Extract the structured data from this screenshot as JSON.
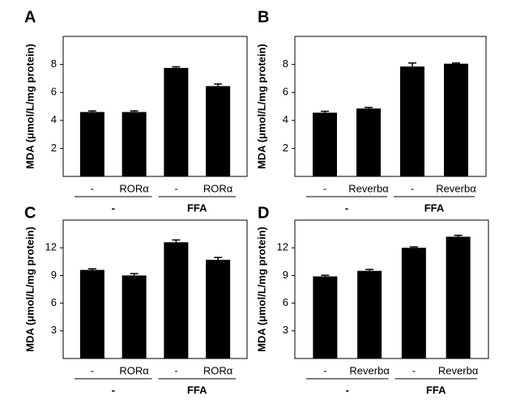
{
  "chart_data": [
    {
      "type": "bar",
      "panel": "A",
      "ylabel": "MDA  (μmol/L/mg protein)",
      "categories": [
        "-",
        "RORα",
        "-",
        "RORα"
      ],
      "group_labels": [
        "-",
        "FFA"
      ],
      "values": [
        4.6,
        4.6,
        7.75,
        6.45
      ],
      "errors": [
        0.08,
        0.08,
        0.08,
        0.15
      ],
      "color": "#000000",
      "ylim": [
        0,
        10
      ],
      "yticks": [
        2,
        4,
        6,
        8
      ]
    },
    {
      "type": "bar",
      "panel": "B",
      "ylabel": "MDA  (μmol/L/mg protein)",
      "categories": [
        "-",
        "Reverbα",
        "-",
        "Reverbα"
      ],
      "group_labels": [
        "-",
        "FFA"
      ],
      "values": [
        4.55,
        4.85,
        7.85,
        8.05
      ],
      "errors": [
        0.1,
        0.08,
        0.25,
        0.05
      ],
      "color": "#000000",
      "ylim": [
        0,
        10
      ],
      "yticks": [
        2,
        4,
        6,
        8
      ]
    },
    {
      "type": "bar",
      "panel": "C",
      "ylabel": "MDA (μmol/L/mg protein)",
      "categories": [
        "-",
        "RORα",
        "-",
        "RORα"
      ],
      "group_labels": [
        "-",
        "FFA"
      ],
      "values": [
        9.6,
        9.0,
        12.6,
        10.7
      ],
      "errors": [
        0.12,
        0.2,
        0.25,
        0.25
      ],
      "color": "#000000",
      "ylim": [
        0,
        15
      ],
      "yticks": [
        3,
        6,
        9,
        12
      ]
    },
    {
      "type": "bar",
      "panel": "D",
      "ylabel": "MDA (μmol/L/mg protein)",
      "categories": [
        "-",
        "Reverbα",
        "-",
        "Reverbα"
      ],
      "group_labels": [
        "-",
        "FFA"
      ],
      "values": [
        8.9,
        9.5,
        12.0,
        13.2
      ],
      "errors": [
        0.12,
        0.15,
        0.1,
        0.15
      ],
      "color": "#000000",
      "ylim": [
        0,
        15
      ],
      "yticks": [
        3,
        6,
        9,
        12
      ]
    }
  ]
}
